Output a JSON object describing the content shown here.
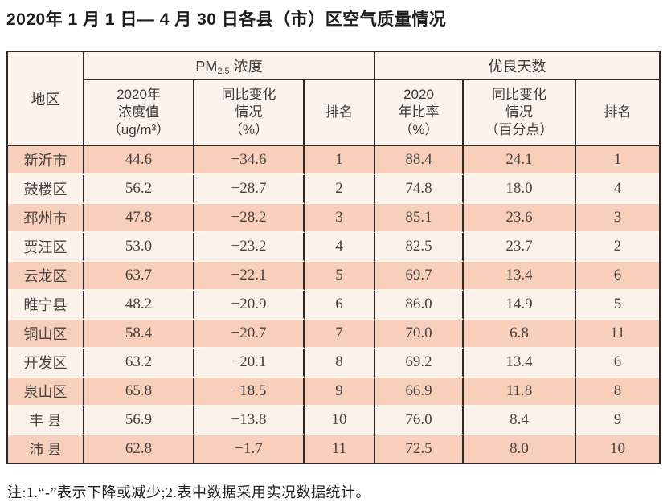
{
  "title": "2020年 1 月 1 日— 4 月 30 日各县（市）区空气质量情况",
  "table": {
    "group_headers": {
      "region": "地区",
      "pm25_prefix": "PM",
      "pm25_sub": "2.5",
      "pm25_suffix": " 浓度",
      "good_days": "优良天数"
    },
    "sub_headers": {
      "pm_value": "2020年\n浓度值\n（ug/m³）",
      "pm_change": "同比变化\n情况\n（%）",
      "pm_rank": "排名",
      "good_ratio": "2020\n年比率\n（%）",
      "good_change": "同比变化\n情况\n（百分点）",
      "good_rank": "排名"
    },
    "rows": [
      {
        "region": "新沂市",
        "pm_value": "44.6",
        "pm_change": "−34.6",
        "pm_rank": "1",
        "good_ratio": "88.4",
        "good_change": "24.1",
        "good_rank": "1"
      },
      {
        "region": "鼓楼区",
        "pm_value": "56.2",
        "pm_change": "−28.7",
        "pm_rank": "2",
        "good_ratio": "74.8",
        "good_change": "18.0",
        "good_rank": "4"
      },
      {
        "region": "邳州市",
        "pm_value": "47.8",
        "pm_change": "−28.2",
        "pm_rank": "3",
        "good_ratio": "85.1",
        "good_change": "23.6",
        "good_rank": "3"
      },
      {
        "region": "贾汪区",
        "pm_value": "53.0",
        "pm_change": "−23.2",
        "pm_rank": "4",
        "good_ratio": "82.5",
        "good_change": "23.7",
        "good_rank": "2"
      },
      {
        "region": "云龙区",
        "pm_value": "63.7",
        "pm_change": "−22.1",
        "pm_rank": "5",
        "good_ratio": "69.7",
        "good_change": "13.4",
        "good_rank": "6"
      },
      {
        "region": "睢宁县",
        "pm_value": "48.2",
        "pm_change": "−20.9",
        "pm_rank": "6",
        "good_ratio": "86.0",
        "good_change": "14.9",
        "good_rank": "5"
      },
      {
        "region": "铜山区",
        "pm_value": "58.4",
        "pm_change": "−20.7",
        "pm_rank": "7",
        "good_ratio": "70.0",
        "good_change": "6.8",
        "good_rank": "11"
      },
      {
        "region": "开发区",
        "pm_value": "63.2",
        "pm_change": "−20.1",
        "pm_rank": "8",
        "good_ratio": "69.2",
        "good_change": "13.4",
        "good_rank": "6"
      },
      {
        "region": "泉山区",
        "pm_value": "65.8",
        "pm_change": "−18.5",
        "pm_rank": "9",
        "good_ratio": "66.9",
        "good_change": "11.8",
        "good_rank": "8"
      },
      {
        "region": "丰 县",
        "pm_value": "56.9",
        "pm_change": "−13.8",
        "pm_rank": "10",
        "good_ratio": "76.0",
        "good_change": "8.4",
        "good_rank": "9"
      },
      {
        "region": "沛 县",
        "pm_value": "62.8",
        "pm_change": "−1.7",
        "pm_rank": "11",
        "good_ratio": "72.5",
        "good_change": "8.0",
        "good_rank": "10"
      }
    ]
  },
  "footnote": "注:1.“-”表示下降或减少;2.表中数据采用实况数据统计。",
  "colors": {
    "border": "#322624",
    "header_bg": "#fdf3ed",
    "row_salmon": "#f8cfbb",
    "row_light": "#fcf2ec",
    "row_separator": "#fdf6f1"
  }
}
